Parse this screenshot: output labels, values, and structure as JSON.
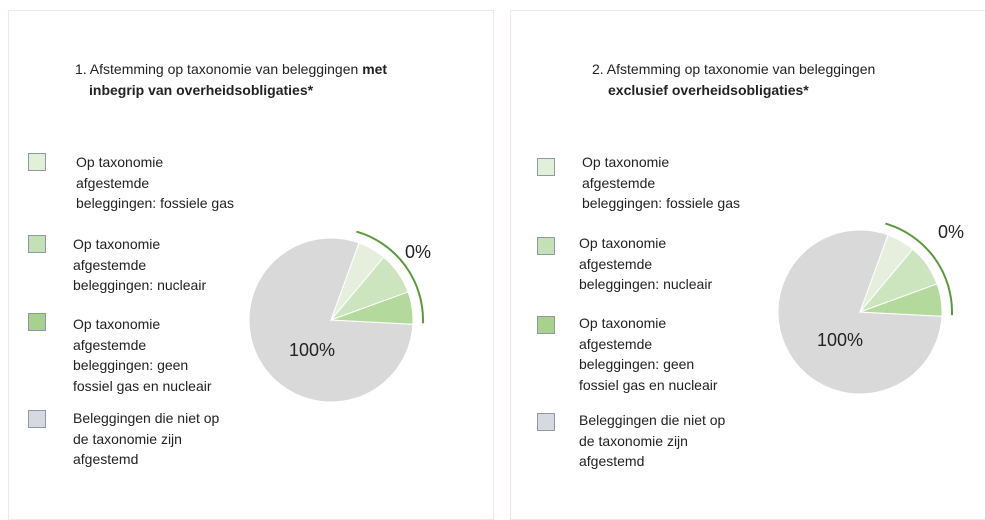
{
  "panels": [
    {
      "title": {
        "line1": "1. Afstemming op taxonomie van beleggingen ",
        "line1_bold": "met",
        "line2_bold": "inbegrip van overheidsobligaties*"
      },
      "legend": [
        [
          "Op taxonomie",
          "afgestemde",
          "beleggingen: fossiele gas"
        ],
        [
          "Op taxonomie",
          "afgestemde",
          "beleggingen: nucleair"
        ],
        [
          "Op taxonomie",
          "afgestemde",
          "beleggingen: geen",
          "fossiel gas en nucleair"
        ],
        [
          "Beleggingen die niet op",
          "de taxonomie zijn",
          "afgestemd"
        ]
      ],
      "labels": {
        "green": "0%",
        "grey": "100%"
      }
    },
    {
      "title": {
        "line1": "2. Afstemming op taxonomie van beleggingen",
        "line1_bold": "",
        "line2_bold": "exclusief overheidsobligaties*"
      },
      "legend": [
        [
          "Op taxonomie",
          "afgestemde",
          "beleggingen: fossiele gas"
        ],
        [
          "Op taxonomie",
          "afgestemde",
          "beleggingen: nucleair"
        ],
        [
          "Op taxonomie",
          "afgestemde",
          "beleggingen: geen",
          "fossiel gas en nucleair"
        ],
        [
          "Beleggingen die niet op",
          "de taxonomie zijn",
          "afgestemd"
        ]
      ],
      "labels": {
        "green": "0%",
        "grey": "100%"
      }
    }
  ]
}
